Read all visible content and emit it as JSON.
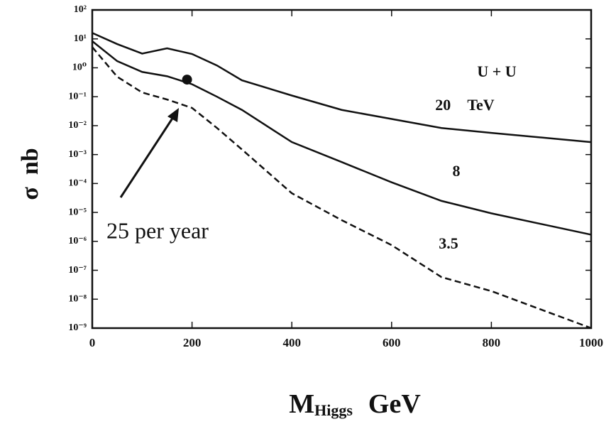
{
  "chart_data": {
    "type": "line",
    "y_label": "σ  nb",
    "x_label": "M",
    "x_label_sub": "Higgs",
    "x_label_unit": "GeV",
    "annotations": [
      "U + U",
      "25 per year"
    ],
    "ylog": true,
    "grid": false,
    "xlim": [
      0,
      1000
    ],
    "xticks": [
      0,
      200,
      400,
      600,
      800,
      1000
    ],
    "ylim": [
      1e-09,
      100
    ],
    "yticks": [
      {
        "value": 100,
        "label": "10²"
      },
      {
        "value": 10,
        "label": "10¹"
      },
      {
        "value": 1,
        "label": "10⁰"
      },
      {
        "value": 0.1,
        "label": "10⁻¹"
      },
      {
        "value": 0.01,
        "label": "10⁻²"
      },
      {
        "value": 0.001,
        "label": "10⁻³"
      },
      {
        "value": 0.0001,
        "label": "10⁻⁴"
      },
      {
        "value": 1e-05,
        "label": "10⁻⁵"
      },
      {
        "value": 1e-06,
        "label": "10⁻⁶"
      },
      {
        "value": 1e-07,
        "label": "10⁻⁷"
      },
      {
        "value": 1e-08,
        "label": "10⁻⁸"
      },
      {
        "value": 1e-09,
        "label": "10⁻⁹"
      }
    ],
    "x": [
      0,
      50,
      100,
      150,
      200,
      250,
      300,
      400,
      500,
      600,
      700,
      800,
      1000
    ],
    "series": [
      {
        "name": "20 TeV",
        "color": "#111111",
        "dash": false,
        "values": [
          16,
          6.6,
          3.1,
          4.7,
          3,
          1.2,
          0.37,
          0.11,
          0.035,
          0.017,
          0.0083,
          0.0056,
          0.0027
        ]
      },
      {
        "name": "8",
        "color": "#111111",
        "dash": false,
        "values": [
          8.3,
          1.7,
          0.72,
          0.51,
          0.27,
          0.1,
          0.035,
          0.0027,
          0.00055,
          0.00011,
          2.5e-05,
          9.3e-06,
          1.7e-06
        ]
      },
      {
        "name": "3.5",
        "color": "#111111",
        "dash": true,
        "values": [
          5.2,
          0.49,
          0.14,
          0.08,
          0.041,
          0.0083,
          0.0015,
          4.6e-05,
          5.4e-06,
          7.4e-07,
          5.8e-08,
          1.9e-08,
          1e-09
        ]
      }
    ],
    "point": {
      "x": 190,
      "y": 0.39
    }
  }
}
